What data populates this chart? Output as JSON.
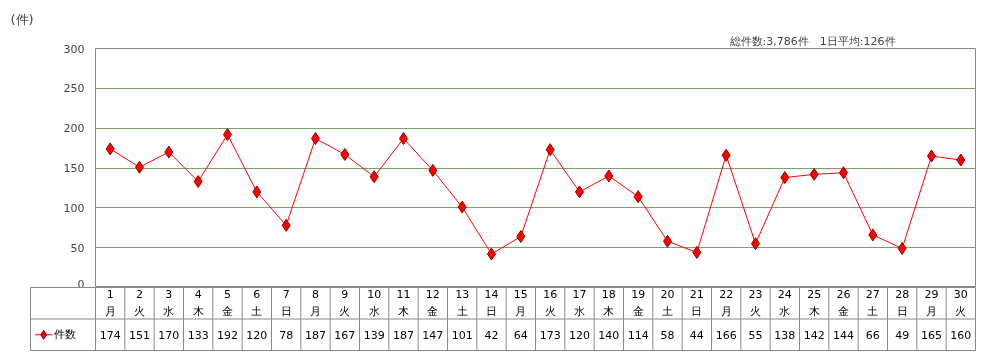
{
  "chart_data": {
    "type": "line",
    "ylabel": "(件)",
    "annotations": [
      "総件数:3,786件　1日平均:126件"
    ],
    "categories": [
      "1\n月",
      "2\n火",
      "3\n水",
      "4\n木",
      "5\n金",
      "6\n土",
      "7\n日",
      "8\n月",
      "9\n火",
      "10\n水",
      "11\n木",
      "12\n金",
      "13\n土",
      "14\n日",
      "15\n月",
      "16\n火",
      "17\n水",
      "18\n木",
      "19\n金",
      "20\n土",
      "21\n日",
      "22\n月",
      "23\n火",
      "24\n水",
      "25\n木",
      "26\n金",
      "27\n土",
      "28\n日",
      "29\n月",
      "30\n火"
    ],
    "series": [
      {
        "name": "件数",
        "color": "#ff0000",
        "values": [
          174,
          151,
          170,
          133,
          192,
          120,
          78,
          187,
          167,
          139,
          187,
          147,
          101,
          42,
          64,
          173,
          120,
          140,
          114,
          58,
          44,
          166,
          55,
          138,
          142,
          144,
          66,
          49,
          165,
          160
        ]
      }
    ],
    "ylim": [
      0,
      300
    ],
    "yticks": [
      0,
      50,
      100,
      150,
      200,
      250,
      300
    ],
    "grid": "y",
    "marker": "diamond",
    "line_style": "solid",
    "data_labels": true,
    "legend": "bottom"
  }
}
